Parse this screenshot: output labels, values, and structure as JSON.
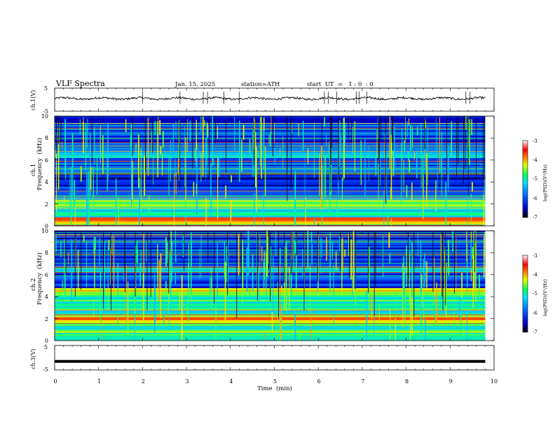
{
  "header": {
    "title": "VLF  Spectra",
    "date": "Jan. 15, 2025",
    "station": "station=ATH",
    "start_ut": "start  UT  =   1 : 0  : 0"
  },
  "chart_data": [
    {
      "id": "ch1_waveform",
      "type": "line",
      "ylabel": "ch.1(V)",
      "ylim": [
        -5,
        5
      ],
      "yticks": [
        "5",
        "-5"
      ],
      "xlim": [
        0,
        10
      ],
      "series_description_level": 0.5,
      "x_end": 9.8
    },
    {
      "id": "ch1_spectrogram",
      "type": "heatmap",
      "ylabel_channel": "ch.1",
      "ylabel": "Frequency  (kHz)",
      "ylim": [
        0,
        10
      ],
      "yticks": [
        "0",
        "2",
        "4",
        "6",
        "8",
        "10"
      ],
      "xlim": [
        0,
        10
      ],
      "x_end": 9.8,
      "colorbar": {
        "label": "log(PSD)(V²/Hz)",
        "range": [
          -7,
          -3
        ],
        "ticks": [
          "-3",
          "-4",
          "-5",
          "-6",
          "-7"
        ]
      },
      "bands_khz": [
        {
          "from": 0.0,
          "to": 0.8,
          "level": -4.2
        },
        {
          "from": 0.8,
          "to": 1.8,
          "level": -5.3
        },
        {
          "from": 1.8,
          "to": 2.4,
          "level": -4.6
        },
        {
          "from": 2.4,
          "to": 3.6,
          "level": -6.0
        },
        {
          "from": 3.6,
          "to": 4.8,
          "level": -6.5
        },
        {
          "from": 4.8,
          "to": 6.2,
          "level": -6.1
        },
        {
          "from": 6.2,
          "to": 6.7,
          "level": -5.6
        },
        {
          "from": 6.7,
          "to": 10.0,
          "level": -6.2
        }
      ]
    },
    {
      "id": "ch2_spectrogram",
      "type": "heatmap",
      "ylabel_channel": "ch.2",
      "ylabel": "Frequency  (kHz)",
      "ylim": [
        0,
        10
      ],
      "yticks": [
        "0",
        "2",
        "4",
        "6",
        "8",
        "10"
      ],
      "xlim": [
        0,
        10
      ],
      "x_end": 9.8,
      "colorbar": {
        "label": "log(PSD)(V²/Hz)",
        "range": [
          -7,
          -3
        ],
        "ticks": [
          "-3",
          "-4",
          "-5",
          "-6",
          "-7"
        ]
      },
      "bands_khz": [
        {
          "from": 0.0,
          "to": 1.6,
          "level": -5.0
        },
        {
          "from": 1.6,
          "to": 2.4,
          "level": -4.2
        },
        {
          "from": 2.4,
          "to": 4.0,
          "level": -5.2
        },
        {
          "from": 4.0,
          "to": 4.8,
          "level": -4.8
        },
        {
          "from": 4.8,
          "to": 6.2,
          "level": -6.2
        },
        {
          "from": 6.2,
          "to": 6.6,
          "level": -5.5
        },
        {
          "from": 6.6,
          "to": 10.0,
          "level": -6.3
        }
      ]
    },
    {
      "id": "ch3_waveform",
      "type": "line",
      "ylabel": "ch.3(V)",
      "ylim": [
        -5,
        5
      ],
      "yticks": [
        "5",
        "-5"
      ],
      "xlim": [
        0,
        10
      ],
      "level": -1.5,
      "x_end": 9.8
    }
  ],
  "xaxis": {
    "label": "Time  (min)",
    "ticks": [
      "0",
      "1",
      "2",
      "3",
      "4",
      "5",
      "6",
      "7",
      "8",
      "9",
      "10"
    ]
  },
  "colors": {
    "cmap": [
      "#000040",
      "#0000c8",
      "#0050ff",
      "#00c8ff",
      "#00ff90",
      "#b4ff00",
      "#ffff00",
      "#ff6000",
      "#ff0000",
      "#ffffff"
    ]
  }
}
